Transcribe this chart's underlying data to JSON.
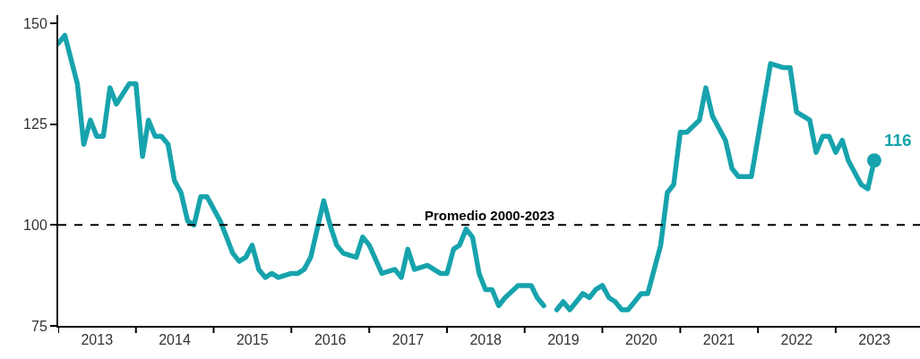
{
  "chart_data": {
    "type": "line",
    "x": [
      "2013-01",
      "2013-02",
      "2013-04",
      "2013-05",
      "2013-06",
      "2013-07",
      "2013-08",
      "2013-09",
      "2013-10",
      "2013-12",
      "2014-01",
      "2014-02",
      "2014-03",
      "2014-04",
      "2014-05",
      "2014-06",
      "2014-07",
      "2014-08",
      "2014-09",
      "2014-10",
      "2014-11",
      "2014-12",
      "2015-02",
      "2015-04",
      "2015-05",
      "2015-06",
      "2015-07",
      "2015-08",
      "2015-09",
      "2015-10",
      "2015-11",
      "2016-01",
      "2016-02",
      "2016-03",
      "2016-04",
      "2016-06",
      "2016-07",
      "2016-08",
      "2016-09",
      "2016-11",
      "2016-12",
      "2017-01",
      "2017-03",
      "2017-05",
      "2017-06",
      "2017-07",
      "2017-08",
      "2017-10",
      "2017-12",
      "2018-01",
      "2018-02",
      "2018-03",
      "2018-04",
      "2018-05",
      "2018-06",
      "2018-07",
      "2018-08",
      "2018-09",
      "2018-10",
      "2018-12",
      "2019-01",
      "2019-02",
      "2019-03",
      "2019-04",
      "2019-05",
      "2019-06",
      "2019-07",
      "2019-08",
      "2019-09",
      "2019-10",
      "2019-11",
      "2019-12",
      "2020-01",
      "2020-02",
      "2020-03",
      "2020-04",
      "2020-05",
      "2020-07",
      "2020-08",
      "2020-10",
      "2020-11",
      "2020-12",
      "2021-01",
      "2021-02",
      "2021-04",
      "2021-05",
      "2021-06",
      "2021-08",
      "2021-09",
      "2021-10",
      "2021-12",
      "2022-03",
      "2022-05",
      "2022-06",
      "2022-07",
      "2022-09",
      "2022-10",
      "2022-11",
      "2022-12",
      "2023-01",
      "2023-02",
      "2023-03",
      "2023-05",
      "2023-06",
      "2023-07"
    ],
    "series": [
      {
        "color": "#17a3ad",
        "values": [
          145,
          147,
          135,
          120,
          126,
          122,
          122,
          134,
          130,
          135,
          135,
          117,
          126,
          122,
          122,
          120,
          111,
          108,
          101,
          100,
          107,
          107,
          101,
          93,
          91,
          92,
          95,
          89,
          87,
          88,
          87,
          88,
          88,
          89,
          92,
          106,
          100,
          95,
          93,
          92,
          97,
          95,
          88,
          89,
          87,
          94,
          89,
          90,
          88,
          88,
          94,
          95,
          99,
          97,
          88,
          84,
          84,
          80,
          82,
          85,
          85,
          85,
          82,
          80,
          null,
          79,
          81,
          79,
          81,
          83,
          82,
          84,
          85,
          82,
          81,
          79,
          79,
          83,
          83,
          95,
          108,
          110,
          123,
          123,
          126,
          134,
          127,
          121,
          114,
          112,
          112,
          140,
          139,
          139,
          128,
          126,
          118,
          122,
          122,
          118,
          121,
          116,
          110,
          109,
          116
        ]
      },
      {
        "type": "scatter",
        "color": "#17a3ad",
        "x": [
          "2023-07"
        ],
        "values": [
          116
        ],
        "marker": "circle",
        "value_labels": [
          "116"
        ]
      }
    ],
    "xlim": [
      "2013-01-01",
      "2024-02-01"
    ],
    "xticks": [
      {
        "value": "2013-01-01",
        "label": null
      },
      {
        "value": "2014-01-01",
        "label": null
      },
      {
        "value": "2015-01-01",
        "label": null
      },
      {
        "value": "2016-01-01",
        "label": null
      },
      {
        "value": "2017-01-01",
        "label": null
      },
      {
        "value": "2018-01-01",
        "label": null
      },
      {
        "value": "2019-01-01",
        "label": null
      },
      {
        "value": "2020-01-01",
        "label": null
      },
      {
        "value": "2021-01-01",
        "label": null
      },
      {
        "value": "2022-01-01",
        "label": null
      },
      {
        "value": "2023-01-01",
        "label": null
      },
      {
        "value": "2013-07-02",
        "label": "2013"
      },
      {
        "value": "2014-07-02",
        "label": "2014"
      },
      {
        "value": "2015-07-02",
        "label": "2015"
      },
      {
        "value": "2016-07-02",
        "label": "2016"
      },
      {
        "value": "2017-07-02",
        "label": "2017"
      },
      {
        "value": "2018-07-02",
        "label": "2018"
      },
      {
        "value": "2019-07-02",
        "label": "2019"
      },
      {
        "value": "2020-07-02",
        "label": "2020"
      },
      {
        "value": "2021-07-02",
        "label": "2021"
      },
      {
        "value": "2022-07-02",
        "label": "2022"
      },
      {
        "value": "2023-07-02",
        "label": "2023"
      }
    ],
    "ylim": [
      75,
      152
    ],
    "yticks": [
      75,
      100,
      125,
      150
    ],
    "ref_lines": [
      {
        "axis": "y",
        "value": 100,
        "label": "Promedio 2000-2023",
        "color": "#000000",
        "line_style": "dashed"
      }
    ],
    "grid": false,
    "line_style": "solid"
  }
}
